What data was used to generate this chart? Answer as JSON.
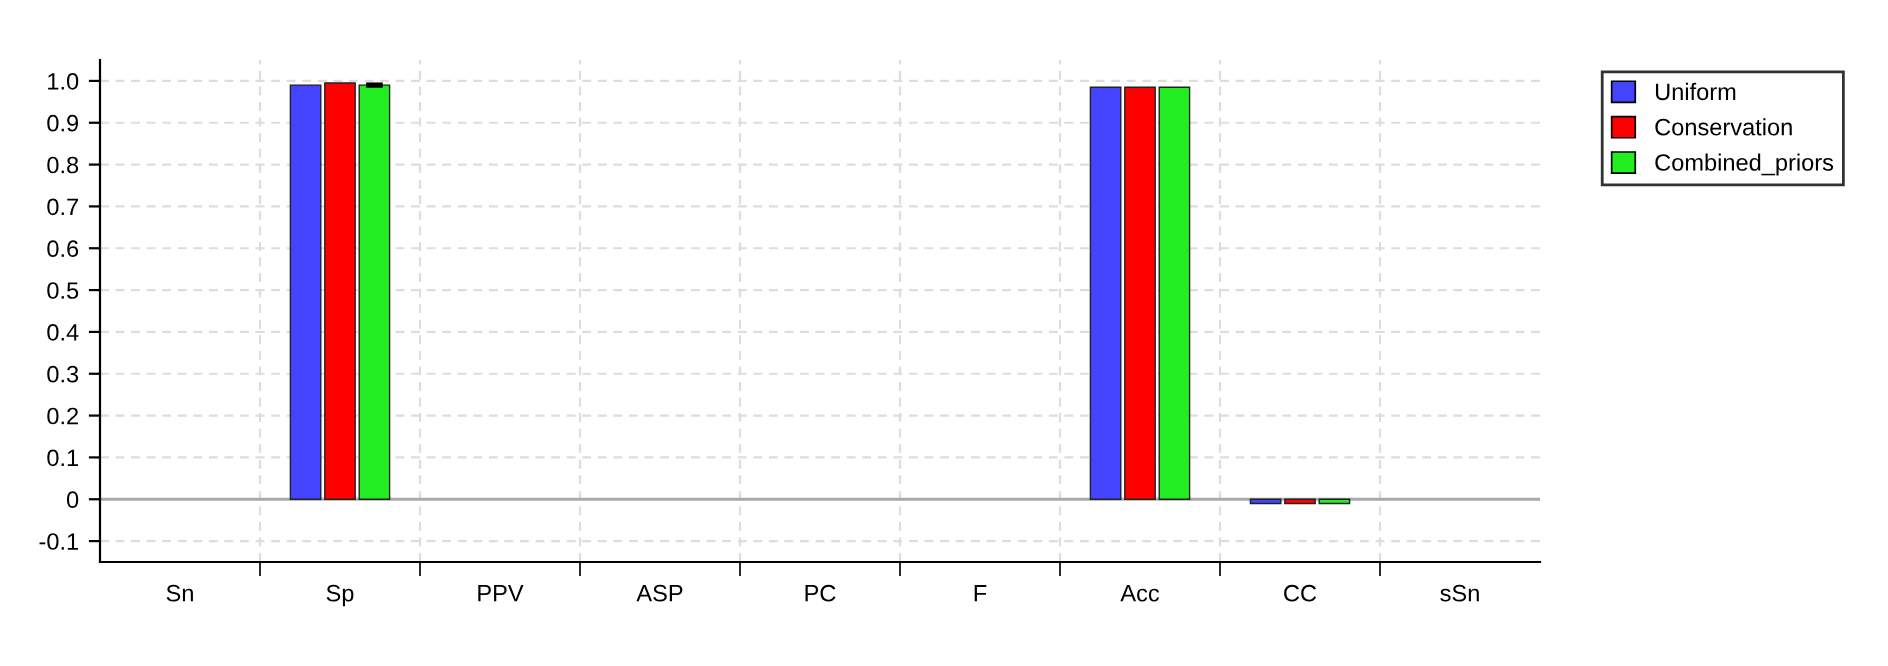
{
  "chart_data": {
    "type": "bar",
    "categories": [
      "Sn",
      "Sp",
      "PPV",
      "ASP",
      "PC",
      "F",
      "Acc",
      "CC",
      "sSn"
    ],
    "series": [
      {
        "name": "Uniform",
        "color": "#4444ff",
        "values": [
          null,
          0.99,
          null,
          null,
          null,
          null,
          0.985,
          -0.01,
          null
        ]
      },
      {
        "name": "Conservation",
        "color": "#ff0000",
        "values": [
          null,
          0.995,
          null,
          null,
          null,
          null,
          0.985,
          -0.01,
          null
        ]
      },
      {
        "name": "Combined_priors",
        "color": "#22ee22",
        "values": [
          null,
          0.99,
          null,
          null,
          null,
          null,
          0.985,
          -0.01,
          null
        ],
        "errors": [
          null,
          0.003,
          null,
          null,
          null,
          null,
          null,
          null,
          null
        ]
      }
    ],
    "ylim": [
      -0.15,
      1.05
    ],
    "yticks": [
      -0.1,
      0,
      0.1,
      0.2,
      0.3,
      0.4,
      0.5,
      0.6,
      0.7,
      0.8,
      0.9,
      {
        "value": 1.0,
        "label": "1.0"
      }
    ],
    "ref_lines": [
      {
        "axis": "y",
        "value": 0,
        "color": "#aaaaaa"
      }
    ],
    "grid": true,
    "legend": "top right"
  }
}
